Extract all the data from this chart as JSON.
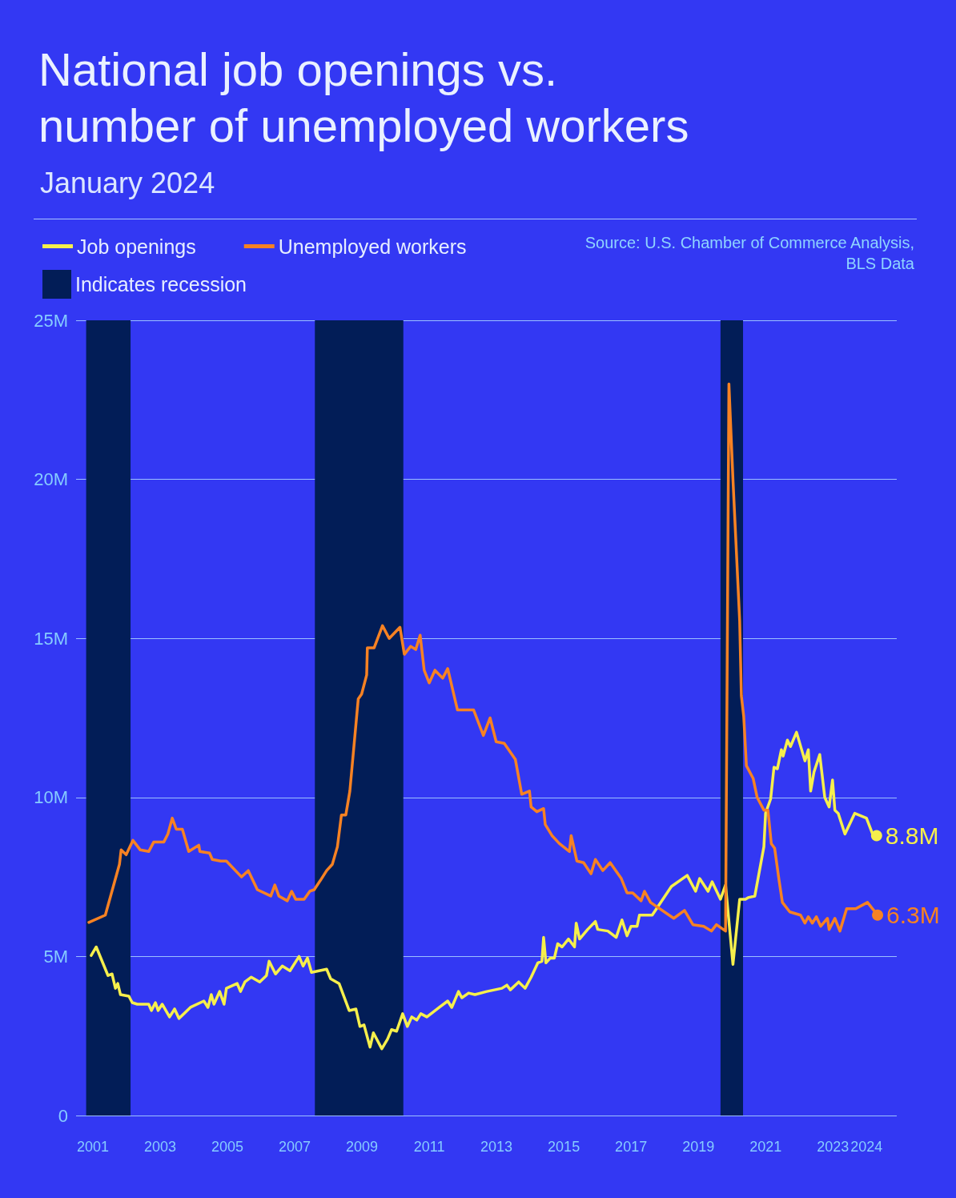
{
  "chart_data": {
    "type": "line",
    "title": "National job openings vs. number of unemployed workers",
    "subtitle": "January 2024",
    "annotations": [
      "Source: U.S. Chamber of Commerce Analysis, BLS Data"
    ],
    "legend": "top left",
    "grid": "y",
    "line_style": "solid",
    "xlim": [
      2000.5,
      2024.9
    ],
    "xticks": [
      2001,
      2003,
      2005,
      2007,
      2009,
      2011,
      2013,
      2015,
      2017,
      2019,
      2021,
      2023,
      2024
    ],
    "ylim": [
      0,
      25
    ],
    "yticks": [
      0,
      {
        "value": 5,
        "label": "5M"
      },
      {
        "value": 10,
        "label": "10M"
      },
      {
        "value": 15,
        "label": "15M"
      },
      {
        "value": 20,
        "label": "20M"
      },
      {
        "value": 25,
        "label": "25M"
      }
    ],
    "bands": [
      {
        "axis": "x",
        "from": 2000.8,
        "to": 2002.12,
        "label": "Indicates recession",
        "color": "#021d57"
      },
      {
        "axis": "x",
        "from": 2007.6,
        "to": 2010.23,
        "color": "#021d57"
      },
      {
        "axis": "x",
        "from": 2019.66,
        "to": 2020.33,
        "color": "#021d57"
      }
    ],
    "series": [
      {
        "name": "Job openings",
        "color": "#f6ef4c",
        "x": [
          2000.95,
          2001.1,
          2001.45,
          2001.57,
          2001.67,
          2001.74,
          2001.82,
          2002.07,
          2002.17,
          2002.32,
          2002.66,
          2002.74,
          2002.86,
          2002.94,
          2003.06,
          2003.28,
          2003.43,
          2003.56,
          2003.9,
          2004.3,
          2004.42,
          2004.52,
          2004.6,
          2004.77,
          2004.9,
          2004.97,
          2005.29,
          2005.39,
          2005.52,
          2005.71,
          2005.96,
          2006.16,
          2006.24,
          2006.43,
          2006.63,
          2006.86,
          2007.13,
          2007.25,
          2007.38,
          2007.5,
          2007.95,
          2008.07,
          2008.32,
          2008.62,
          2008.82,
          2008.94,
          2009.06,
          2009.24,
          2009.34,
          2009.59,
          2009.76,
          2009.88,
          2010.03,
          2010.21,
          2010.35,
          2010.48,
          2010.63,
          2010.75,
          2010.93,
          2011.3,
          2011.55,
          2011.67,
          2011.87,
          2011.97,
          2012.17,
          2012.36,
          2012.71,
          2013.16,
          2013.31,
          2013.41,
          2013.66,
          2013.85,
          2014.03,
          2014.23,
          2014.35,
          2014.4,
          2014.47,
          2014.6,
          2014.72,
          2014.82,
          2014.95,
          2015.14,
          2015.32,
          2015.37,
          2015.47,
          2015.71,
          2015.94,
          2016.01,
          2016.31,
          2016.56,
          2016.73,
          2016.88,
          2017.0,
          2017.18,
          2017.25,
          2017.63,
          2018.2,
          2018.67,
          2018.92,
          2019.04,
          2019.29,
          2019.41,
          2019.66,
          2019.81,
          2020.03,
          2020.23,
          2020.4,
          2020.48,
          2020.68,
          2020.95,
          2021.0,
          2021.15,
          2021.25,
          2021.35,
          2021.47,
          2021.52,
          2021.65,
          2021.74,
          2021.92,
          2022.17,
          2022.27,
          2022.34,
          2022.44,
          2022.61,
          2022.76,
          2022.89,
          2022.99,
          2023.06,
          2023.16,
          2023.36,
          2023.65,
          2024.0,
          2024.18,
          2024.3
        ],
        "values": [
          5.03,
          5.3,
          4.4,
          4.45,
          4.0,
          4.15,
          3.8,
          3.75,
          3.55,
          3.5,
          3.5,
          3.3,
          3.55,
          3.3,
          3.5,
          3.1,
          3.35,
          3.05,
          3.4,
          3.6,
          3.4,
          3.8,
          3.5,
          3.9,
          3.5,
          4.0,
          4.15,
          3.9,
          4.2,
          4.35,
          4.2,
          4.4,
          4.85,
          4.45,
          4.7,
          4.55,
          5.0,
          4.7,
          4.95,
          4.5,
          4.6,
          4.3,
          4.15,
          3.3,
          3.35,
          2.8,
          2.85,
          2.15,
          2.6,
          2.1,
          2.4,
          2.7,
          2.65,
          3.2,
          2.8,
          3.1,
          3.0,
          3.2,
          3.1,
          3.4,
          3.6,
          3.4,
          3.9,
          3.7,
          3.85,
          3.8,
          3.9,
          4.0,
          4.1,
          3.95,
          4.2,
          4.0,
          4.35,
          4.8,
          4.85,
          5.6,
          4.8,
          4.95,
          4.95,
          5.4,
          5.3,
          5.55,
          5.3,
          6.05,
          5.55,
          5.85,
          6.1,
          5.85,
          5.8,
          5.6,
          6.15,
          5.65,
          5.95,
          5.95,
          6.3,
          6.3,
          7.2,
          7.55,
          7.05,
          7.45,
          7.05,
          7.35,
          6.8,
          7.25,
          4.75,
          6.8,
          6.8,
          6.85,
          6.9,
          8.45,
          9.5,
          9.95,
          10.95,
          10.9,
          11.5,
          11.3,
          11.8,
          11.6,
          12.05,
          11.15,
          11.5,
          10.2,
          10.8,
          11.35,
          10.0,
          9.7,
          10.55,
          9.6,
          9.5,
          8.85,
          9.5,
          9.35,
          8.85,
          8.8
        ],
        "value_labels": [
          null,
          null,
          null,
          null,
          null,
          null,
          null,
          null,
          null,
          null,
          null,
          null,
          null,
          null,
          null,
          null,
          null,
          null,
          null,
          null,
          null,
          null,
          null,
          null,
          null,
          null,
          null,
          null,
          null,
          null,
          null,
          null,
          null,
          null,
          null,
          null,
          null,
          null,
          null,
          null,
          null,
          null,
          null,
          null,
          null,
          null,
          null,
          null,
          null,
          null,
          null,
          null,
          null,
          null,
          null,
          null,
          null,
          null,
          null,
          null,
          null,
          null,
          null,
          null,
          null,
          null,
          null,
          null,
          null,
          null,
          null,
          null,
          null,
          null,
          null,
          null,
          null,
          null,
          null,
          null,
          null,
          null,
          null,
          null,
          null,
          null,
          null,
          null,
          null,
          null,
          null,
          null,
          null,
          null,
          null,
          null,
          null,
          null,
          null,
          null,
          null,
          null,
          null,
          null,
          null,
          null,
          null,
          null,
          null,
          null,
          null,
          null,
          null,
          null,
          null,
          null,
          null,
          null,
          null,
          null,
          null,
          null,
          null,
          null,
          null,
          null,
          null,
          null,
          null,
          null,
          null,
          null,
          null,
          "8.8M"
        ]
      },
      {
        "name": "Unemployed workers",
        "color": "#f78223",
        "x": [
          2000.88,
          2001.37,
          2001.79,
          2001.84,
          2001.99,
          2002.19,
          2002.41,
          2002.66,
          2002.81,
          2003.11,
          2003.23,
          2003.36,
          2003.48,
          2003.66,
          2003.85,
          2004.15,
          2004.18,
          2004.47,
          2004.55,
          2004.8,
          2004.97,
          2005.42,
          2005.62,
          2005.89,
          2006.29,
          2006.41,
          2006.53,
          2006.78,
          2006.91,
          2007.03,
          2007.28,
          2007.45,
          2007.58,
          2007.77,
          2007.95,
          2008.12,
          2008.27,
          2008.39,
          2008.52,
          2008.64,
          2008.89,
          2008.99,
          2009.14,
          2009.16,
          2009.36,
          2009.61,
          2009.81,
          2010.13,
          2010.26,
          2010.45,
          2010.6,
          2010.73,
          2010.85,
          2011.0,
          2011.17,
          2011.4,
          2011.55,
          2011.84,
          2012.32,
          2012.61,
          2012.81,
          2012.99,
          2013.23,
          2013.56,
          2013.75,
          2013.98,
          2014.03,
          2014.2,
          2014.4,
          2014.45,
          2014.65,
          2014.87,
          2015.17,
          2015.22,
          2015.39,
          2015.59,
          2015.81,
          2015.94,
          2016.16,
          2016.38,
          2016.71,
          2016.88,
          2017.05,
          2017.3,
          2017.4,
          2017.58,
          2018.27,
          2018.59,
          2018.84,
          2019.16,
          2019.39,
          2019.54,
          2019.81,
          2019.91,
          2020.03,
          2020.23,
          2020.28,
          2020.35,
          2020.43,
          2020.63,
          2020.75,
          2020.95,
          2021.07,
          2021.17,
          2021.27,
          2021.4,
          2021.5,
          2021.72,
          2022.04,
          2022.17,
          2022.27,
          2022.39,
          2022.51,
          2022.64,
          2022.84,
          2022.89,
          2023.06,
          2023.21,
          2023.41,
          2023.68,
          2024.03,
          2024.33
        ],
        "values": [
          6.07,
          6.3,
          7.9,
          8.35,
          8.2,
          8.65,
          8.35,
          8.3,
          8.6,
          8.6,
          8.85,
          9.35,
          9.0,
          9.0,
          8.3,
          8.5,
          8.3,
          8.25,
          8.05,
          8.0,
          8.0,
          7.5,
          7.7,
          7.1,
          6.9,
          7.25,
          6.9,
          6.75,
          7.05,
          6.8,
          6.8,
          7.05,
          7.1,
          7.4,
          7.7,
          7.9,
          8.45,
          9.45,
          9.45,
          10.2,
          13.1,
          13.25,
          13.85,
          14.7,
          14.7,
          15.4,
          15.0,
          15.35,
          14.5,
          14.75,
          14.65,
          15.1,
          14.0,
          13.6,
          14.0,
          13.75,
          14.05,
          12.75,
          12.75,
          11.95,
          12.5,
          11.75,
          11.7,
          11.2,
          10.1,
          10.2,
          9.7,
          9.55,
          9.65,
          9.15,
          8.8,
          8.55,
          8.3,
          8.8,
          8.0,
          7.95,
          7.6,
          8.05,
          7.7,
          7.95,
          7.45,
          7.0,
          7.0,
          6.75,
          7.05,
          6.7,
          6.2,
          6.45,
          6.0,
          5.95,
          5.8,
          6.0,
          5.8,
          23.0,
          20.0,
          15.55,
          13.2,
          12.55,
          11.0,
          10.6,
          10.0,
          9.6,
          9.6,
          8.55,
          8.4,
          7.4,
          6.7,
          6.4,
          6.3,
          6.05,
          6.25,
          6.05,
          6.25,
          5.95,
          6.2,
          5.85,
          6.2,
          5.8,
          6.5,
          6.5,
          6.7,
          6.3
        ],
        "value_labels": [
          null,
          null,
          null,
          null,
          null,
          null,
          null,
          null,
          null,
          null,
          null,
          null,
          null,
          null,
          null,
          null,
          null,
          null,
          null,
          null,
          null,
          null,
          null,
          null,
          null,
          null,
          null,
          null,
          null,
          null,
          null,
          null,
          null,
          null,
          null,
          null,
          null,
          null,
          null,
          null,
          null,
          null,
          null,
          null,
          null,
          null,
          null,
          null,
          null,
          null,
          null,
          null,
          null,
          null,
          null,
          null,
          null,
          null,
          null,
          null,
          null,
          null,
          null,
          null,
          null,
          null,
          null,
          null,
          null,
          null,
          null,
          null,
          null,
          null,
          null,
          null,
          null,
          null,
          null,
          null,
          null,
          null,
          null,
          null,
          null,
          null,
          null,
          null,
          null,
          null,
          null,
          null,
          null,
          null,
          null,
          null,
          null,
          null,
          null,
          null,
          null,
          null,
          null,
          null,
          null,
          null,
          null,
          null,
          null,
          null,
          null,
          null,
          null,
          null,
          null,
          null,
          null,
          null,
          null,
          null,
          null,
          "6.3M"
        ]
      }
    ]
  }
}
